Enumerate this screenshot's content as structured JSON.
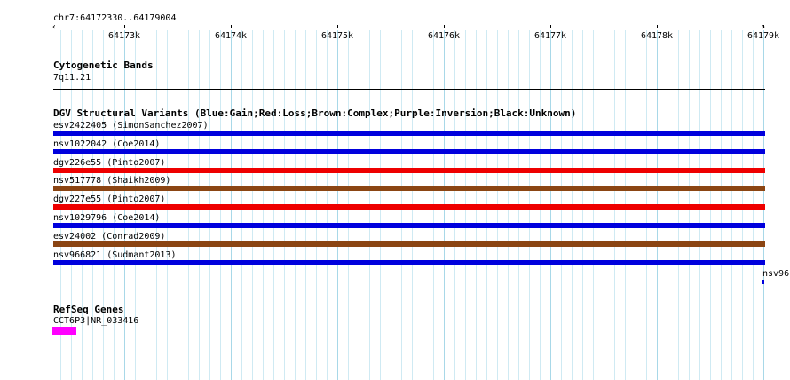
{
  "ruler": {
    "position": "chr7:64172330..64179004",
    "ticks": [
      "64173k",
      "64174k",
      "64175k",
      "64176k",
      "64177k",
      "64178k",
      "64179k"
    ]
  },
  "cytoband": {
    "title": "Cytogenetic Bands",
    "band": "7q11.21"
  },
  "dgv": {
    "title": "DGV Structural Variants (Blue:Gain;Red:Loss;Brown:Complex;Purple:Inversion;Black:Unknown)",
    "legend_colors": {
      "gain": "#0000dd",
      "loss": "#ee0000",
      "complex": "#8b4513"
    },
    "features": [
      {
        "label": "esv2422405 (SimonSanchez2007)",
        "type": "gain",
        "color": "#0000dd"
      },
      {
        "label": "nsv1022042 (Coe2014)",
        "type": "gain",
        "color": "#0000dd"
      },
      {
        "label": "dgv226e55 (Pinto2007)",
        "type": "loss",
        "color": "#ee0000"
      },
      {
        "label": "nsv517778 (Shaikh2009)",
        "type": "complex",
        "color": "#8b4513"
      },
      {
        "label": "dgv227e55 (Pinto2007)",
        "type": "loss",
        "color": "#ee0000"
      },
      {
        "label": "nsv1029796 (Coe2014)",
        "type": "gain",
        "color": "#0000dd"
      },
      {
        "label": "esv24002 (Conrad2009)",
        "type": "complex",
        "color": "#8b4513"
      },
      {
        "label": "nsv966821 (Sudmant2013)",
        "type": "gain",
        "color": "#0000dd"
      }
    ],
    "overflow_label": "nsv96"
  },
  "refseq": {
    "title": "RefSeq Genes",
    "gene_label": "CCT6P3|NR_033416",
    "gene_color": "#ff00ff"
  }
}
